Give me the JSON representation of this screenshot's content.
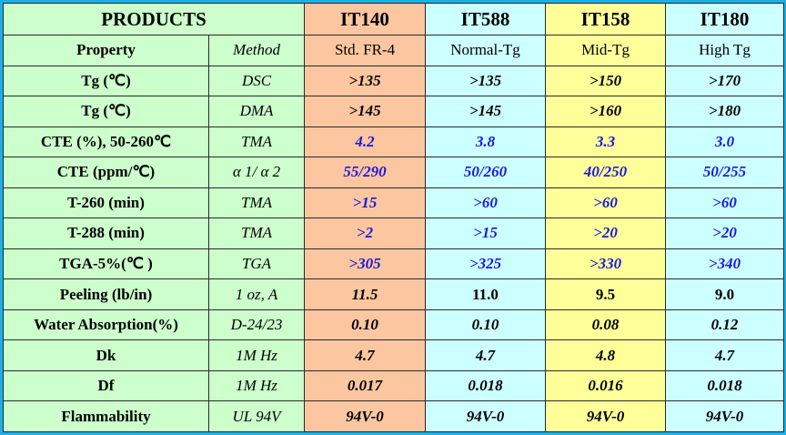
{
  "header": {
    "title": "PRODUCTS",
    "columns": [
      "IT140",
      "IT588",
      "IT158",
      "IT180"
    ]
  },
  "table": {
    "rows": [
      [
        "Property",
        "Method",
        "Std. FR-4",
        "Normal-Tg",
        "Mid-Tg",
        "High Tg"
      ],
      [
        "Tg (℃)",
        "DSC",
        ">135",
        ">135",
        ">150",
        ">170"
      ],
      [
        "Tg (℃)",
        "DMA",
        ">145",
        ">145",
        ">160",
        ">180"
      ],
      [
        "CTE (%), 50-260℃",
        "TMA",
        "4.2",
        "3.8",
        "3.3",
        "3.0"
      ],
      [
        "CTE (ppm/℃)",
        "α 1/ α 2",
        "55/290",
        "50/260",
        "40/250",
        "50/255"
      ],
      [
        "T-260 (min)",
        "TMA",
        ">15",
        ">60",
        ">60",
        ">60"
      ],
      [
        "T-288 (min)",
        "TMA",
        ">2",
        ">15",
        ">20",
        ">20"
      ],
      [
        "TGA-5%(℃ )",
        "TGA",
        ">305",
        ">325",
        ">330",
        ">340"
      ],
      [
        "Peeling (lb/in)",
        "1 oz, A",
        "11.5",
        "11.0",
        "9.5",
        "9.0"
      ],
      [
        "Water Absorption(%)",
        "D-24/23",
        "0.10",
        "0.10",
        "0.08",
        "0.12"
      ],
      [
        "Dk",
        "1M Hz",
        "4.7",
        "4.7",
        "4.8",
        "4.7"
      ],
      [
        "Df",
        "1M Hz",
        "0.017",
        "0.018",
        "0.016",
        "0.018"
      ],
      [
        "Flammability",
        "UL 94V",
        "94V-0",
        "94V-0",
        "94V-0",
        "94V-0"
      ]
    ]
  }
}
